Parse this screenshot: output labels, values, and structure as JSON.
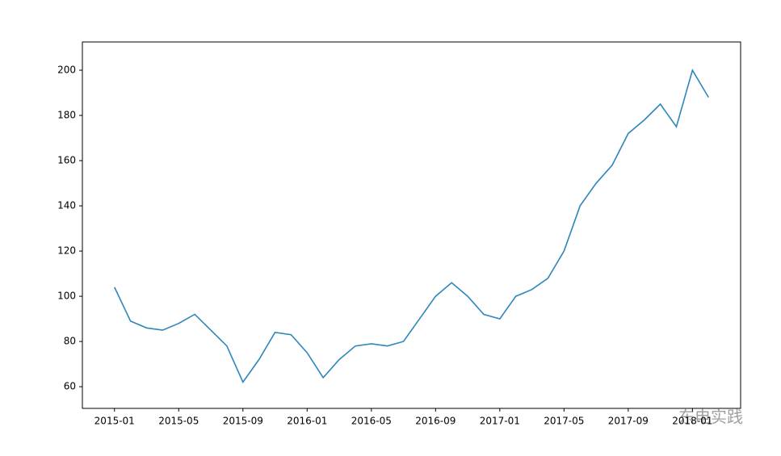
{
  "chart_data": {
    "type": "line",
    "x": [
      "2015-01",
      "2015-02",
      "2015-03",
      "2015-04",
      "2015-05",
      "2015-06",
      "2015-07",
      "2015-08",
      "2015-09",
      "2015-10",
      "2015-11",
      "2015-12",
      "2016-01",
      "2016-02",
      "2016-03",
      "2016-04",
      "2016-05",
      "2016-06",
      "2016-07",
      "2016-08",
      "2016-09",
      "2016-10",
      "2016-11",
      "2016-12",
      "2017-01",
      "2017-02",
      "2017-03",
      "2017-04",
      "2017-05",
      "2017-06",
      "2017-07",
      "2017-08",
      "2017-09",
      "2017-10",
      "2017-11",
      "2017-12",
      "2018-01",
      "2018-02"
    ],
    "series": [
      {
        "color": "#2e86bc",
        "values": [
          104,
          89,
          86,
          85,
          88,
          92,
          85,
          78,
          62,
          72,
          84,
          83,
          75,
          64,
          72,
          78,
          79,
          78,
          80,
          90,
          100,
          106,
          100,
          92,
          90,
          100,
          103,
          108,
          120,
          140,
          150,
          158,
          172,
          178,
          185,
          175,
          200,
          188
        ]
      }
    ],
    "xlim": [
      "2014-11",
      "2018-04"
    ],
    "xticks": [
      "2015-01",
      "2015-05",
      "2015-09",
      "2016-01",
      "2016-05",
      "2016-09",
      "2017-01",
      "2017-05",
      "2017-09",
      "2018-01"
    ],
    "ylim": [
      50.4,
      212.5
    ],
    "yticks": [
      60,
      80,
      100,
      120,
      140,
      160,
      180,
      200
    ],
    "grid": false,
    "watermark": "东电实践"
  }
}
